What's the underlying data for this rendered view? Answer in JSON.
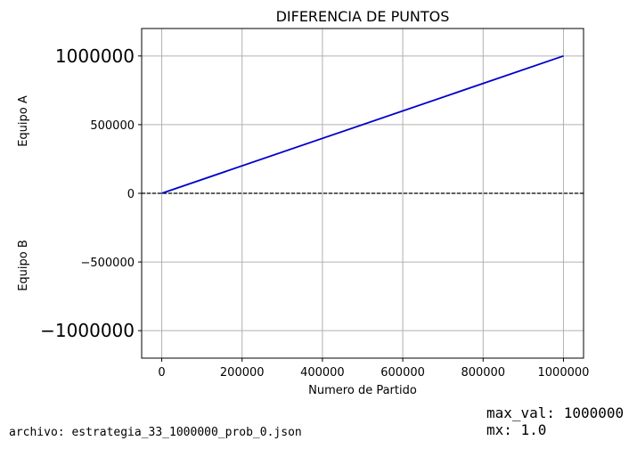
{
  "chart_data": {
    "type": "line",
    "title": "DIFERENCIA DE PUNTOS",
    "xlabel": "Numero de Partido",
    "ylabel_top": "Equipo A",
    "ylabel_bottom": "Equipo B",
    "xlim": [
      -50000,
      1050000
    ],
    "ylim": [
      -1200000,
      1200000
    ],
    "x_ticks": [
      0,
      200000,
      400000,
      600000,
      800000,
      1000000
    ],
    "x_tick_labels": [
      "0",
      "200000",
      "400000",
      "600000",
      "800000",
      "1000000"
    ],
    "y_ticks": [
      1000000,
      500000,
      0,
      -500000,
      -1000000
    ],
    "y_tick_labels": [
      "1000000",
      "500000",
      "0",
      "−500000",
      "−1000000"
    ],
    "y_tick_large": [
      true,
      false,
      false,
      false,
      true
    ],
    "grid": true,
    "reference_line": {
      "y": 0,
      "style": "dashed",
      "color": "#000000"
    },
    "series": [
      {
        "x": [
          0,
          1000000
        ],
        "y": [
          0,
          1000000
        ],
        "color": "#0000cc"
      }
    ]
  },
  "footer": {
    "file": "archivo: estrategia_33_1000000_prob_0.json",
    "max_val": "max_val: 1000000",
    "mx": "mx: 1.0"
  }
}
